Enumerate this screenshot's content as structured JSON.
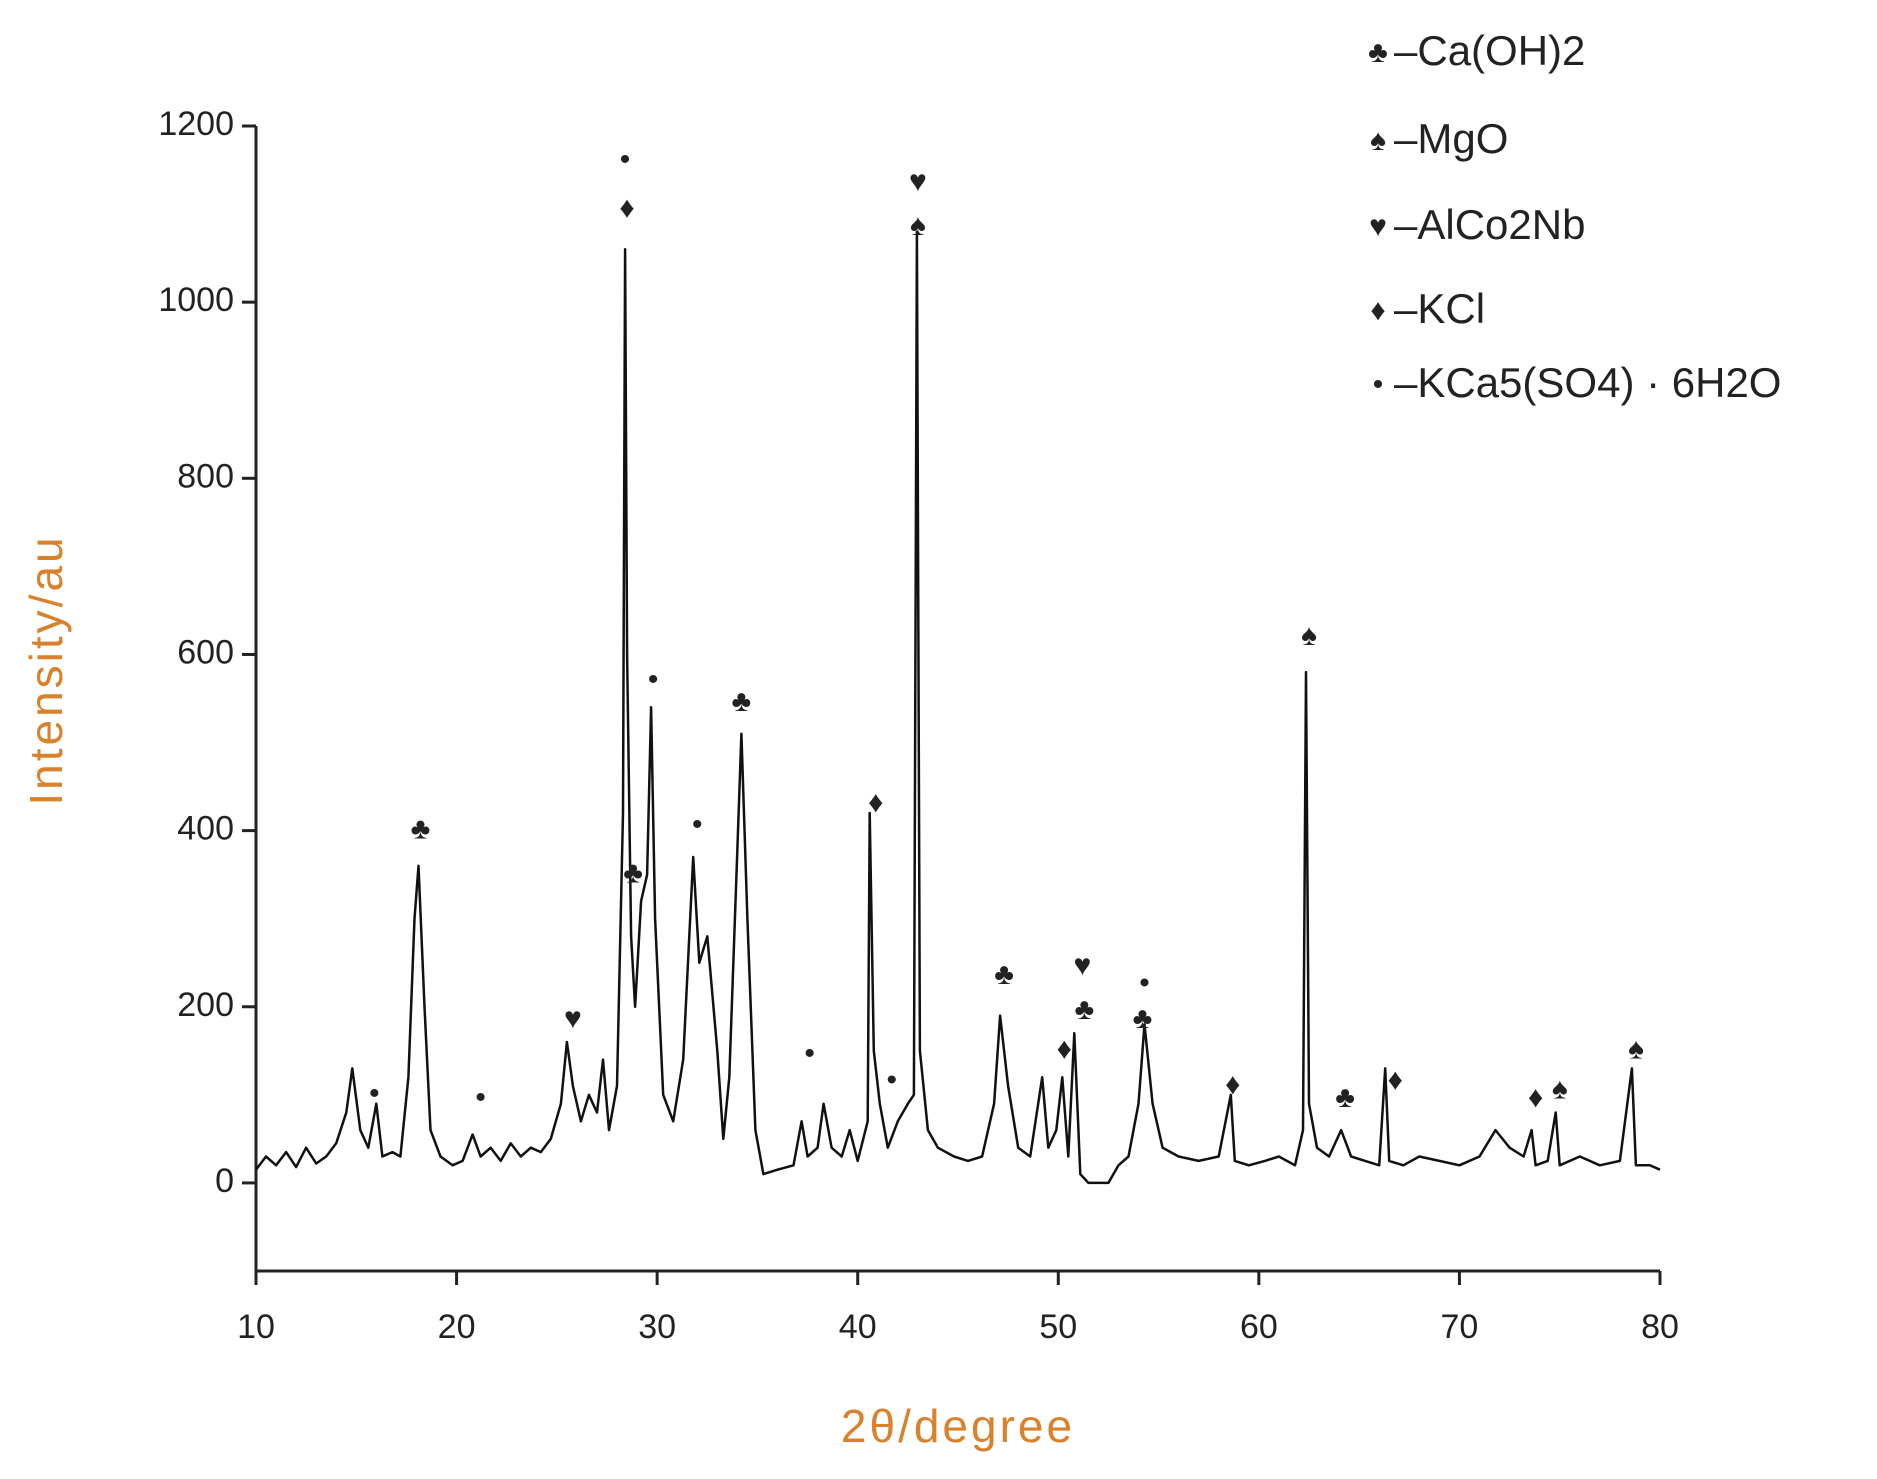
{
  "chart_data": {
    "type": "line",
    "x_label": "2θ/degree",
    "y_label": "Intensity/au",
    "color": "#111111",
    "xlim": [
      10,
      80
    ],
    "xticks": [
      10,
      20,
      30,
      40,
      50,
      60,
      70,
      80
    ],
    "ylim": [
      -100,
      1200
    ],
    "yticks": [
      0,
      200,
      400,
      600,
      800,
      1000,
      1200
    ],
    "x": [
      10,
      10.5,
      11,
      11.5,
      12,
      12.5,
      13,
      13.5,
      14,
      14.5,
      14.8,
      15.2,
      15.6,
      16,
      16.3,
      16.8,
      17.2,
      17.6,
      17.9,
      18.1,
      18.4,
      18.7,
      19.2,
      19.8,
      20.3,
      20.8,
      21.2,
      21.7,
      22.2,
      22.7,
      23.2,
      23.7,
      24.2,
      24.7,
      25.2,
      25.5,
      25.8,
      26.2,
      26.6,
      27,
      27.3,
      27.6,
      28,
      28.3,
      28.4,
      28.5,
      28.7,
      28.9,
      29.2,
      29.5,
      29.7,
      29.9,
      30.3,
      30.8,
      31.3,
      31.8,
      32.1,
      32.5,
      33,
      33.3,
      33.6,
      34,
      34.2,
      34.5,
      34.9,
      35.3,
      36,
      36.8,
      37.2,
      37.5,
      38,
      38.3,
      38.7,
      39.2,
      39.6,
      40,
      40.5,
      40.6,
      40.8,
      41.1,
      41.5,
      42,
      42.5,
      42.8,
      42.95,
      43.1,
      43.5,
      44,
      44.8,
      45.5,
      46.2,
      46.8,
      47.1,
      47.5,
      48,
      48.6,
      49.2,
      49.5,
      49.9,
      50.2,
      50.5,
      50.8,
      51.1,
      51.5,
      52.5,
      53,
      53.5,
      54,
      54.3,
      54.7,
      55.2,
      56,
      57,
      58,
      58.6,
      58.8,
      59.5,
      60.3,
      61,
      61.8,
      62.2,
      62.35,
      62.5,
      62.9,
      63.5,
      64.1,
      64.6,
      65.3,
      66,
      66.3,
      66.5,
      67.2,
      68,
      69,
      70,
      71,
      71.8,
      72.5,
      73.2,
      73.6,
      73.8,
      74.4,
      74.8,
      75,
      76,
      77,
      78,
      78.6,
      78.8,
      79.5,
      80
    ],
    "values": [
      15,
      30,
      20,
      35,
      18,
      40,
      22,
      30,
      45,
      80,
      130,
      60,
      40,
      90,
      30,
      35,
      30,
      120,
      300,
      360,
      200,
      60,
      30,
      20,
      25,
      55,
      30,
      40,
      25,
      45,
      30,
      40,
      35,
      50,
      90,
      160,
      110,
      70,
      100,
      80,
      140,
      60,
      110,
      420,
      1060,
      600,
      280,
      200,
      320,
      350,
      540,
      300,
      100,
      70,
      140,
      370,
      250,
      280,
      150,
      50,
      120,
      380,
      510,
      300,
      60,
      10,
      15,
      20,
      70,
      30,
      40,
      90,
      40,
      30,
      60,
      25,
      70,
      420,
      150,
      90,
      40,
      70,
      90,
      100,
      1080,
      150,
      60,
      40,
      30,
      25,
      30,
      90,
      190,
      110,
      40,
      30,
      120,
      40,
      60,
      120,
      30,
      170,
      10,
      0,
      0,
      20,
      30,
      90,
      180,
      90,
      40,
      30,
      25,
      30,
      100,
      25,
      20,
      25,
      30,
      20,
      60,
      580,
      90,
      40,
      30,
      60,
      30,
      25,
      20,
      130,
      25,
      20,
      30,
      25,
      20,
      30,
      60,
      40,
      30,
      60,
      20,
      25,
      80,
      20,
      30,
      20,
      25,
      130,
      20,
      20,
      15
    ],
    "legend": [
      {
        "symbol": "♣",
        "label": "–Ca(OH)2"
      },
      {
        "symbol": "♠",
        "label": "–MgO"
      },
      {
        "symbol": "♥",
        "label": "–AlCo2Nb"
      },
      {
        "symbol": "♦",
        "label": "–KCl"
      },
      {
        "symbol": "•",
        "label": "–KCa5(SO4) · 6H2O"
      }
    ],
    "annotations": [
      {
        "symbol": "•",
        "x": 15.9,
        "y": 100
      },
      {
        "symbol": "♣",
        "x": 18.2,
        "y": 400
      },
      {
        "symbol": "•",
        "x": 21.2,
        "y": 95
      },
      {
        "symbol": "♥",
        "x": 25.8,
        "y": 185
      },
      {
        "symbol": "•",
        "x": 28.4,
        "y": 1160
      },
      {
        "symbol": "♦",
        "x": 28.5,
        "y": 1105
      },
      {
        "symbol": "♣",
        "x": 28.8,
        "y": 350
      },
      {
        "symbol": "•",
        "x": 29.8,
        "y": 570
      },
      {
        "symbol": "•",
        "x": 32,
        "y": 405
      },
      {
        "symbol": "♣",
        "x": 34.2,
        "y": 545
      },
      {
        "symbol": "•",
        "x": 37.6,
        "y": 145
      },
      {
        "symbol": "♦",
        "x": 40.9,
        "y": 430
      },
      {
        "symbol": "•",
        "x": 41.7,
        "y": 115
      },
      {
        "symbol": "♥",
        "x": 43,
        "y": 1135
      },
      {
        "symbol": "♠",
        "x": 43,
        "y": 1085
      },
      {
        "symbol": "♣",
        "x": 47.3,
        "y": 235
      },
      {
        "symbol": "♦",
        "x": 50.3,
        "y": 150
      },
      {
        "symbol": "♥",
        "x": 51.2,
        "y": 245
      },
      {
        "symbol": "♣",
        "x": 51.3,
        "y": 195
      },
      {
        "symbol": "•",
        "x": 54.3,
        "y": 225
      },
      {
        "symbol": "♣",
        "x": 54.2,
        "y": 185
      },
      {
        "symbol": "♦",
        "x": 58.7,
        "y": 110
      },
      {
        "symbol": "♠",
        "x": 62.5,
        "y": 620
      },
      {
        "symbol": "♣",
        "x": 64.3,
        "y": 95
      },
      {
        "symbol": "♦",
        "x": 66.8,
        "y": 115
      },
      {
        "symbol": "♦",
        "x": 73.8,
        "y": 95
      },
      {
        "symbol": "♠",
        "x": 75,
        "y": 105
      },
      {
        "symbol": "♠",
        "x": 78.8,
        "y": 150
      }
    ]
  }
}
